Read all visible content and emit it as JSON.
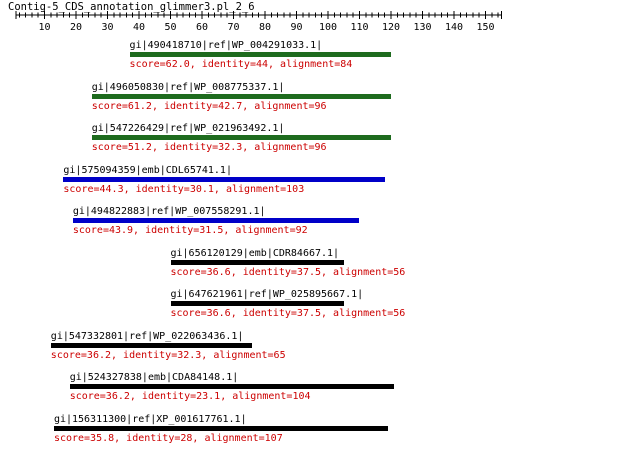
{
  "title": "Contig-5_CDS_annotation_glimmer3.pl_2_6",
  "axis": {
    "min": 1,
    "max": 155,
    "major_tick_labels": [
      10,
      20,
      30,
      40,
      50,
      60,
      70,
      80,
      90,
      100,
      110,
      120,
      130,
      140,
      150
    ]
  },
  "colors": {
    "axis": "#000000",
    "score_text": "#cc0000",
    "bar_green": "#1e6b1e",
    "bar_blue": "#0000c8",
    "bar_black": "#000000"
  },
  "hits": [
    {
      "label": "gi|490418710|ref|WP_004291033.1|",
      "score": "score=62.0, identity=44, alignment=84",
      "start": 37,
      "end": 120,
      "color": "#1e6b1e"
    },
    {
      "label": "gi|496050830|ref|WP_008775337.1|",
      "score": "score=61.2, identity=42.7, alignment=96",
      "start": 25,
      "end": 120,
      "color": "#1e6b1e"
    },
    {
      "label": "gi|547226429|ref|WP_021963492.1|",
      "score": "score=51.2, identity=32.3, alignment=96",
      "start": 25,
      "end": 120,
      "color": "#1e6b1e"
    },
    {
      "label": "gi|575094359|emb|CDL65741.1|",
      "score": "score=44.3, identity=30.1, alignment=103",
      "start": 16,
      "end": 118,
      "color": "#0000c8"
    },
    {
      "label": "gi|494822883|ref|WP_007558291.1|",
      "score": "score=43.9, identity=31.5, alignment=92",
      "start": 19,
      "end": 110,
      "color": "#0000c8"
    },
    {
      "label": "gi|656120129|emb|CDR84667.1|",
      "score": "score=36.6, identity=37.5, alignment=56",
      "start": 50,
      "end": 105,
      "color": "#000000"
    },
    {
      "label": "gi|647621961|ref|WP_025895667.1|",
      "score": "score=36.6, identity=37.5, alignment=56",
      "start": 50,
      "end": 105,
      "color": "#000000"
    },
    {
      "label": "gi|547332801|ref|WP_022063436.1|",
      "score": "score=36.2, identity=32.3, alignment=65",
      "start": 12,
      "end": 76,
      "color": "#000000"
    },
    {
      "label": "gi|524327838|emb|CDA84148.1|",
      "score": "score=36.2, identity=23.1, alignment=104",
      "start": 18,
      "end": 121,
      "color": "#000000"
    },
    {
      "label": "gi|156311300|ref|XP_001617761.1|",
      "score": "score=35.8, identity=28, alignment=107",
      "start": 13,
      "end": 119,
      "color": "#000000"
    }
  ]
}
